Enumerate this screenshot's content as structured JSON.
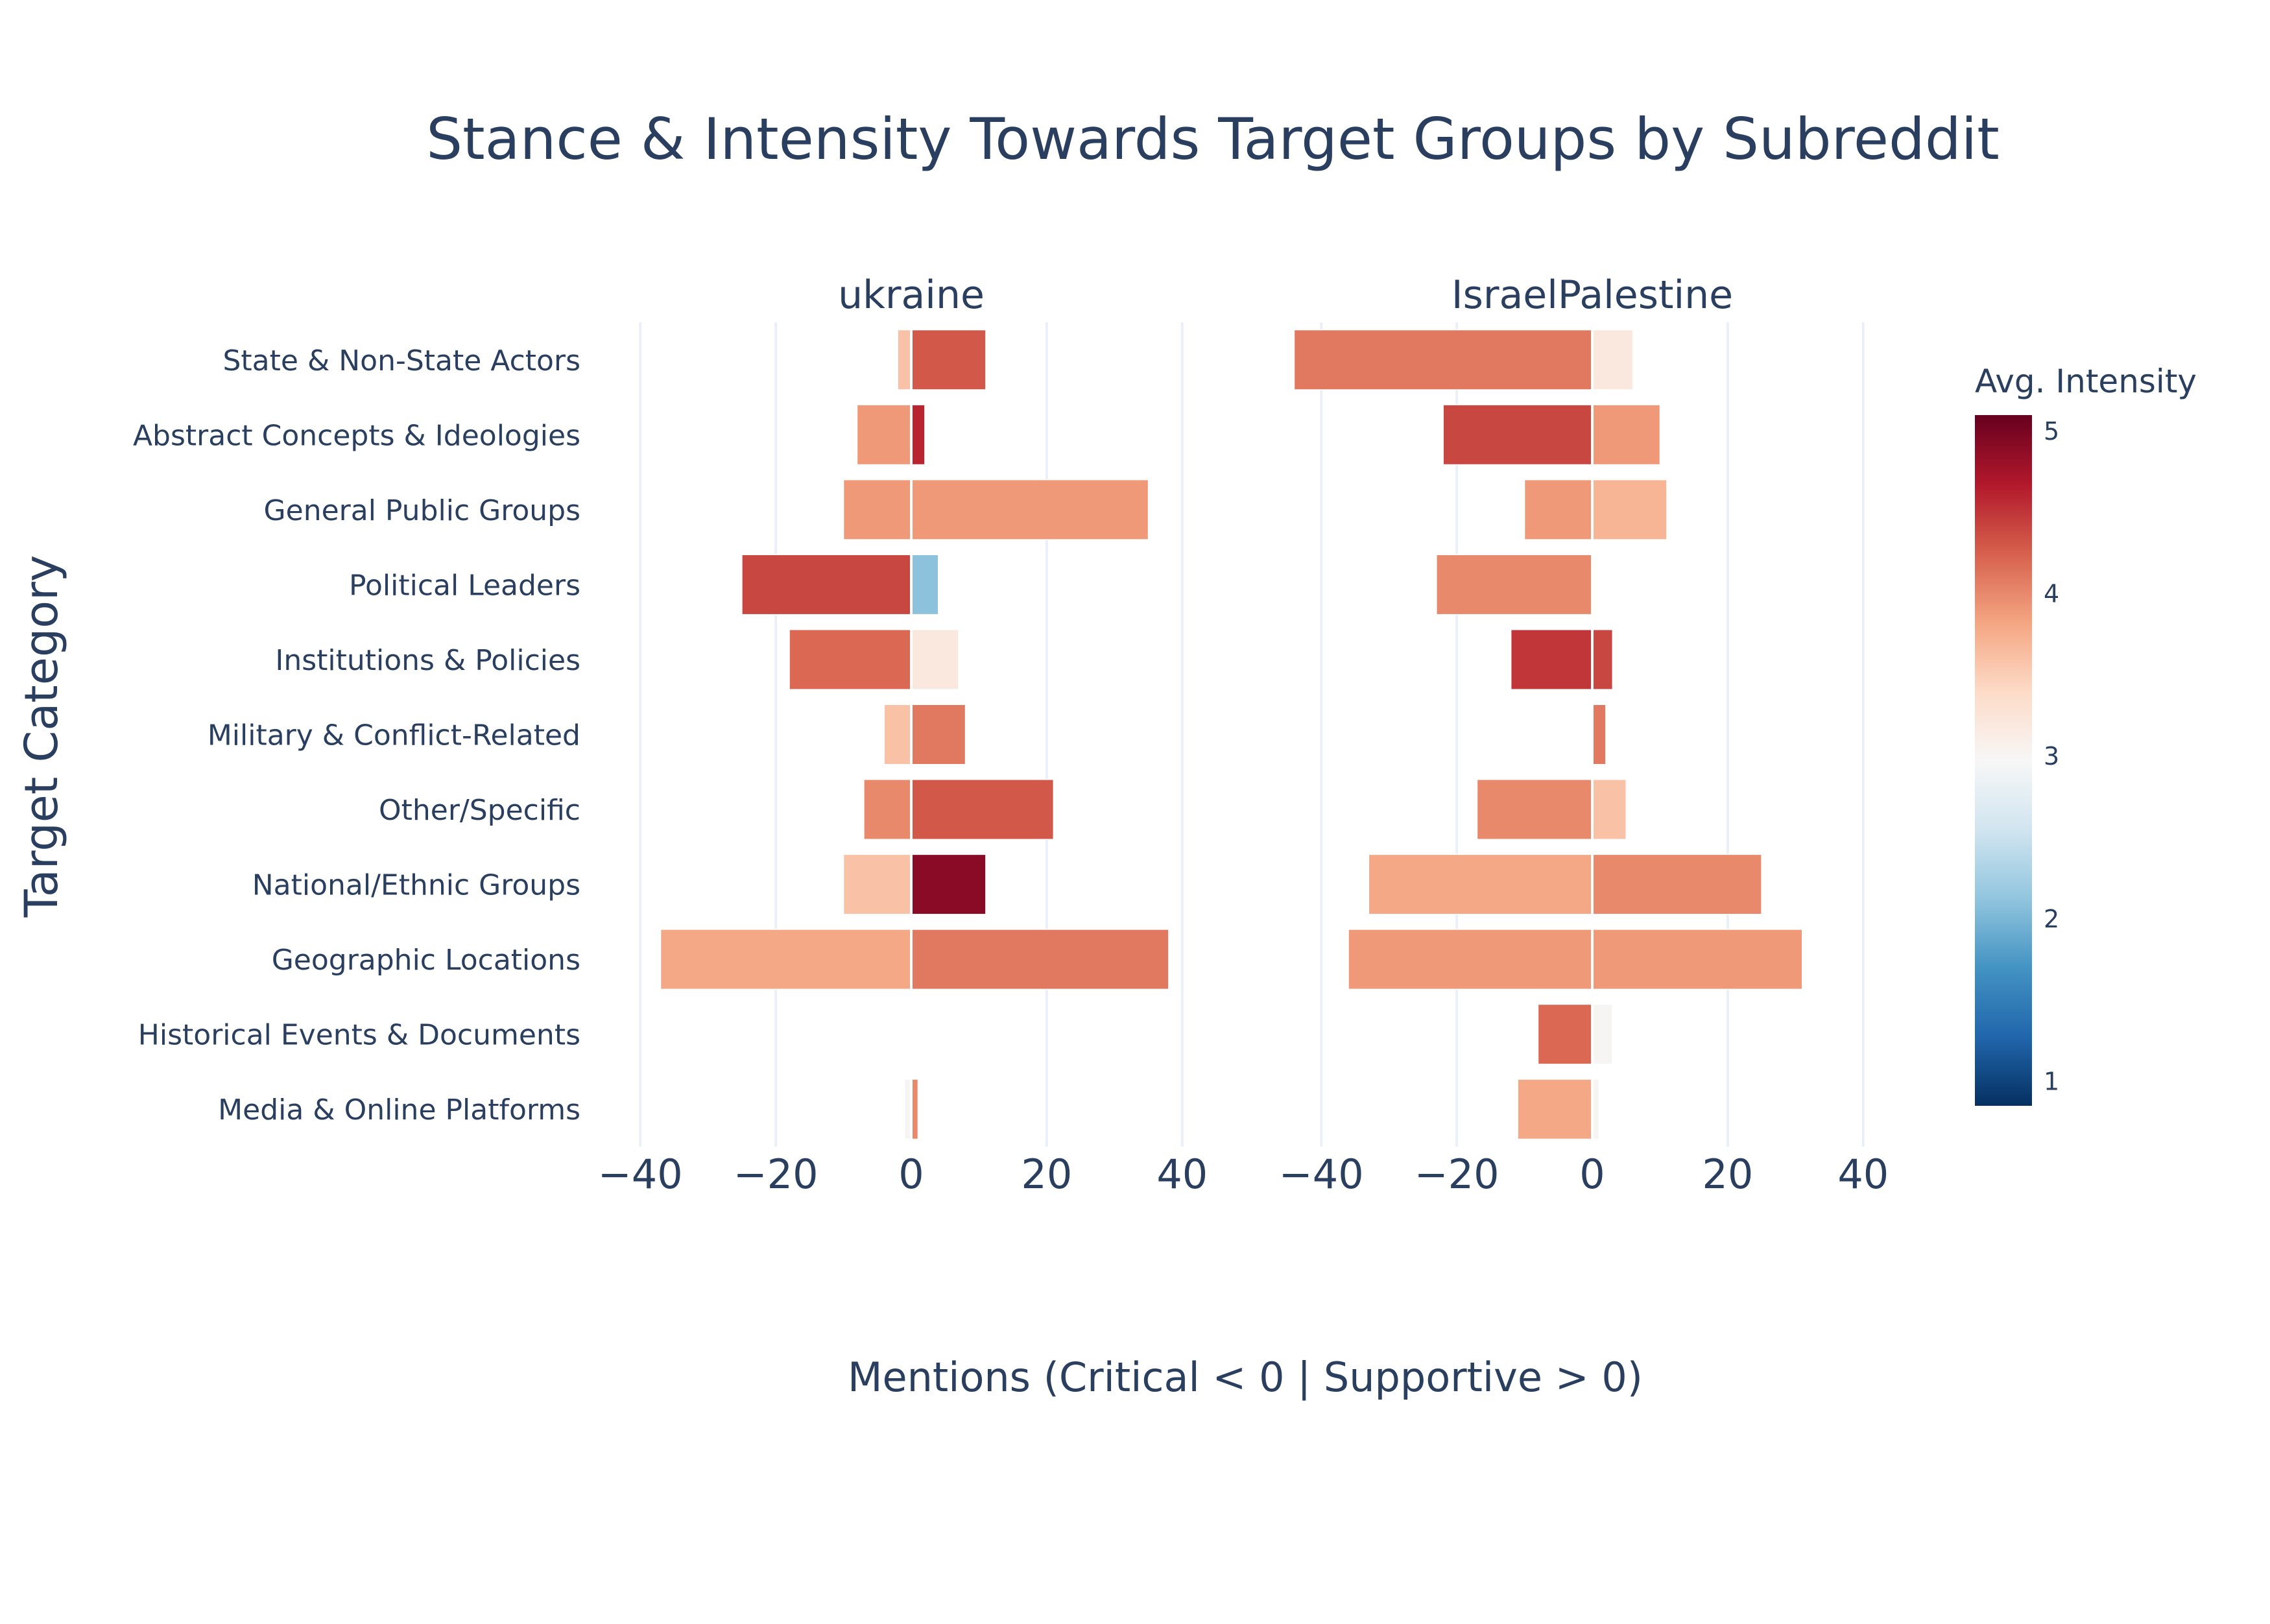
{
  "chart_data": {
    "type": "bar",
    "orientation": "horizontal",
    "barmode": "relative",
    "title": "Stance & Intensity Towards Target Groups by Subreddit",
    "xlabel": "Mentions (Critical < 0 | Supportive > 0)",
    "ylabel": "Target Category",
    "xlim": [
      -45,
      45
    ],
    "xticks": [
      -40,
      -20,
      0,
      20,
      40
    ],
    "xtick_labels": [
      "−40",
      "−20",
      "0",
      "20",
      "40"
    ],
    "grid": true,
    "categories": [
      "State & Non-State Actors",
      "Abstract Concepts & Ideologies",
      "General Public Groups",
      "Political Leaders",
      "Institutions & Policies",
      "Military & Conflict-Related",
      "Other/Specific",
      "National/Ethnic Groups",
      "Geographic Locations",
      "Historical Events & Documents",
      "Media & Online Platforms"
    ],
    "panels": [
      {
        "subreddit": "ukraine",
        "critical": [
          -2,
          -8,
          -10,
          -25,
          -18,
          -4,
          -7,
          -10,
          -37,
          0,
          -1
        ],
        "critical_intensity": [
          3.6,
          3.9,
          3.9,
          4.4,
          4.2,
          3.6,
          4.0,
          3.6,
          3.8,
          3.0,
          3.0
        ],
        "supportive": [
          11,
          2,
          35,
          4,
          7,
          8,
          21,
          11,
          38,
          0,
          1
        ],
        "supportive_intensity": [
          4.3,
          4.6,
          3.9,
          2.1,
          3.2,
          4.1,
          4.3,
          4.9,
          4.1,
          3.0,
          4.0
        ]
      },
      {
        "subreddit": "IsraelPalestine",
        "critical": [
          -44,
          -22,
          -10,
          -23,
          -12,
          0,
          -17,
          -33,
          -36,
          -8,
          -11
        ],
        "critical_intensity": [
          4.1,
          4.4,
          3.9,
          4.0,
          4.5,
          3.0,
          4.0,
          3.8,
          3.9,
          4.2,
          3.8
        ],
        "supportive": [
          6,
          10,
          11,
          0,
          3,
          2,
          5,
          25,
          31,
          3,
          1
        ],
        "supportive_intensity": [
          3.2,
          3.9,
          3.7,
          3.0,
          4.4,
          4.1,
          3.6,
          4.0,
          3.9,
          3.0,
          3.0
        ]
      }
    ],
    "colorbar": {
      "title": "Avg. Intensity",
      "min": 0.85,
      "max": 5.1,
      "ticks": [
        1,
        2,
        3,
        4,
        5
      ],
      "tick_labels": [
        "1",
        "2",
        "3",
        "4",
        "5"
      ],
      "colorscale": "RdBu_r",
      "stops": [
        "#053061",
        "#2166ac",
        "#4393c3",
        "#92c5de",
        "#d1e5f0",
        "#f7f7f7",
        "#fddbc7",
        "#f4a582",
        "#d6604d",
        "#b2182b",
        "#67001f"
      ]
    },
    "colors": {
      "text": "#2a3f5f",
      "grid": "#ebf0f8",
      "zeroline": "#ffffff",
      "background": "#ffffff"
    }
  }
}
